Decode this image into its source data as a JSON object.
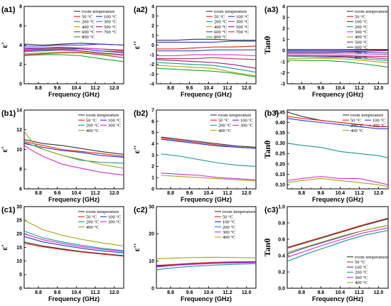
{
  "colors": {
    "room temperature": "#333333",
    "50 °C": "#e0261b",
    "100 °C": "#2b35d6",
    "200 °C": "#1a9a8a",
    "300 °C": "#d52dd5",
    "400 °C": "#a5a517",
    "500 °C": "#8a1f8a",
    "600 °C": "#3c4ab0",
    "700 °C": "#c03050",
    "800 °C": "#17a32a"
  },
  "chart_data": [
    {
      "id": "a1",
      "panel_label": "(a1)",
      "type": "line",
      "title": "",
      "xlabel": "Frequency (GHz)",
      "ylabel": "ε'",
      "xlim": [
        8.2,
        12.4
      ],
      "ylim": [
        0,
        8
      ],
      "xticks": [
        "8.8",
        "9.6",
        "10.4",
        "11.2",
        "12.0"
      ],
      "yticks": [
        "0",
        "2",
        "4",
        "6",
        "8"
      ],
      "legend_cols": 2,
      "legend_position": "top-right",
      "x": [
        8.2,
        9.0,
        9.8,
        10.6,
        11.4,
        12.4
      ],
      "series": [
        {
          "name": "room temperature",
          "values": [
            4.1,
            4.0,
            4.1,
            4.2,
            4.1,
            4.0
          ]
        },
        {
          "name": "50 °C",
          "values": [
            3.5,
            3.6,
            3.6,
            3.7,
            3.6,
            3.4
          ]
        },
        {
          "name": "100 °C",
          "values": [
            3.9,
            3.9,
            4.0,
            4.0,
            4.1,
            4.0
          ]
        },
        {
          "name": "200 °C",
          "values": [
            3.3,
            3.4,
            3.5,
            3.6,
            3.4,
            3.3
          ]
        },
        {
          "name": "300 °C",
          "values": [
            3.6,
            3.7,
            3.8,
            3.7,
            3.6,
            3.5
          ]
        },
        {
          "name": "400 °C",
          "values": [
            3.1,
            3.2,
            3.3,
            3.3,
            3.1,
            2.9
          ]
        },
        {
          "name": "500 °C",
          "values": [
            3.4,
            3.5,
            3.5,
            3.4,
            3.2,
            3.0
          ]
        },
        {
          "name": "600 °C",
          "values": [
            3.7,
            3.7,
            3.7,
            3.6,
            3.4,
            3.2
          ]
        },
        {
          "name": "700 °C",
          "values": [
            3.0,
            3.1,
            3.2,
            3.2,
            3.0,
            2.7
          ]
        },
        {
          "name": "800 °C",
          "values": [
            2.9,
            3.0,
            3.0,
            2.9,
            2.6,
            2.3
          ]
        }
      ]
    },
    {
      "id": "a2",
      "panel_label": "(a2)",
      "type": "line",
      "title": "",
      "xlabel": "Frequency (GHz)",
      "ylabel": "ε''",
      "xlim": [
        8.2,
        12.4
      ],
      "ylim": [
        -4,
        4
      ],
      "xticks": [
        "8.8",
        "9.6",
        "10.4",
        "11.2",
        "12.0"
      ],
      "yticks": [
        "-4",
        "-3",
        "-2",
        "-1",
        "0",
        "1",
        "2",
        "3",
        "4"
      ],
      "legend_cols": 2,
      "legend_position": "top-right",
      "x": [
        8.2,
        9.0,
        9.8,
        10.6,
        11.4,
        12.4
      ],
      "series": [
        {
          "name": "room temperature",
          "values": [
            0.5,
            0.5,
            0.6,
            0.6,
            0.5,
            0.5
          ]
        },
        {
          "name": "50 °C",
          "values": [
            -0.4,
            -0.4,
            -0.3,
            -0.2,
            -0.2,
            -0.1
          ]
        },
        {
          "name": "100 °C",
          "values": [
            0.3,
            0.3,
            0.3,
            0.3,
            0.4,
            0.4
          ]
        },
        {
          "name": "200 °C",
          "values": [
            -1.8,
            -1.9,
            -2.0,
            -2.1,
            -2.4,
            -2.8
          ]
        },
        {
          "name": "300 °C",
          "values": [
            -1.1,
            -1.1,
            -1.0,
            -1.0,
            -1.0,
            -1.1
          ]
        },
        {
          "name": "400 °C",
          "values": [
            -2.1,
            -2.2,
            -2.3,
            -2.4,
            -2.8,
            -3.2
          ]
        },
        {
          "name": "500 °C",
          "values": [
            -1.5,
            -1.6,
            -1.7,
            -1.8,
            -2.0,
            -2.4
          ]
        },
        {
          "name": "600 °C",
          "values": [
            -0.6,
            -0.6,
            -0.6,
            -0.5,
            -0.5,
            -0.5
          ]
        },
        {
          "name": "700 °C",
          "values": [
            -1.4,
            -1.4,
            -1.4,
            -1.3,
            -1.4,
            -1.5
          ]
        },
        {
          "name": "800 °C",
          "values": [
            -2.4,
            -2.5,
            -2.6,
            -2.7,
            -2.9,
            -3.3
          ]
        }
      ]
    },
    {
      "id": "a3",
      "panel_label": "(a3)",
      "type": "line",
      "title": "",
      "xlabel": "Frequency (GHz)",
      "ylabel": "Tanθ",
      "xlim": [
        8.2,
        12.4
      ],
      "ylim": [
        -3,
        4
      ],
      "xticks": [
        "8.8",
        "9.6",
        "10.4",
        "11.2",
        "12.0"
      ],
      "yticks": [
        "-3",
        "-2",
        "-1",
        "0",
        "1",
        "2",
        "3",
        "4"
      ],
      "legend_cols": 1,
      "legend_position": "top-right",
      "x": [
        8.2,
        9.0,
        9.8,
        10.6,
        11.4,
        12.4
      ],
      "series": [
        {
          "name": "room temperature",
          "values": [
            0.1,
            0.1,
            0.1,
            0.1,
            0.1,
            0.1
          ]
        },
        {
          "name": "50 °C",
          "values": [
            -0.1,
            -0.1,
            -0.1,
            -0.1,
            -0.05,
            0.0
          ]
        },
        {
          "name": "100 °C",
          "values": [
            0.0,
            0.0,
            0.0,
            0.0,
            0.05,
            0.05
          ]
        },
        {
          "name": "200 °C",
          "values": [
            -0.5,
            -0.55,
            -0.6,
            -0.6,
            -0.75,
            -0.9
          ]
        },
        {
          "name": "300 °C",
          "values": [
            -0.3,
            -0.3,
            -0.3,
            -0.3,
            -0.3,
            -0.35
          ]
        },
        {
          "name": "400 °C",
          "values": [
            -0.7,
            -0.7,
            -0.7,
            -0.75,
            -0.9,
            -1.1
          ]
        },
        {
          "name": "500 °C",
          "values": [
            -0.45,
            -0.45,
            -0.5,
            -0.55,
            -0.6,
            -0.75
          ]
        },
        {
          "name": "600 °C",
          "values": [
            -0.2,
            -0.2,
            -0.2,
            -0.15,
            -0.15,
            -0.2
          ]
        },
        {
          "name": "700 °C",
          "values": [
            -0.45,
            -0.45,
            -0.45,
            -0.45,
            -0.5,
            -0.55
          ]
        },
        {
          "name": "800 °C",
          "values": [
            -0.85,
            -0.9,
            -0.9,
            -1.0,
            -1.2,
            -1.5
          ]
        }
      ]
    },
    {
      "id": "b1",
      "panel_label": "(b1)",
      "type": "line",
      "title": "",
      "xlabel": "Frequency (GHz)",
      "ylabel": "ε'",
      "xlim": [
        8.2,
        12.4
      ],
      "ylim": [
        6,
        14
      ],
      "xticks": [
        "8.8",
        "9.6",
        "10.4",
        "11.2",
        "12.0"
      ],
      "yticks": [
        "6",
        "8",
        "10",
        "12",
        "14"
      ],
      "legend_cols": 2,
      "legend_position": "top-right",
      "x": [
        8.2,
        8.6,
        9.0,
        9.8,
        10.6,
        11.4,
        12.4
      ],
      "series": [
        {
          "name": "room temperature",
          "values": [
            11.0,
            10.8,
            10.6,
            10.4,
            10.1,
            9.8,
            9.5
          ]
        },
        {
          "name": "50 °C",
          "values": [
            10.8,
            10.6,
            10.4,
            10.0,
            9.8,
            9.6,
            9.3
          ]
        },
        {
          "name": "100 °C",
          "values": [
            10.6,
            10.4,
            10.2,
            9.9,
            9.7,
            9.4,
            9.2
          ]
        },
        {
          "name": "200 °C",
          "values": [
            10.7,
            10.4,
            10.0,
            9.4,
            8.9,
            8.7,
            8.6
          ]
        },
        {
          "name": "300 °C",
          "values": [
            10.4,
            9.8,
            9.3,
            8.5,
            8.1,
            7.7,
            7.4
          ]
        },
        {
          "name": "400 °C",
          "values": [
            11.8,
            10.6,
            10.0,
            9.4,
            9.0,
            8.5,
            8.1
          ]
        }
      ]
    },
    {
      "id": "b2",
      "panel_label": "(b2)",
      "type": "line",
      "title": "",
      "xlabel": "Frequency (GHz)",
      "ylabel": "ε''",
      "xlim": [
        8.2,
        12.4
      ],
      "ylim": [
        0,
        7
      ],
      "xticks": [
        "8.8",
        "9.6",
        "10.4",
        "11.2",
        "12.0"
      ],
      "yticks": [
        "0",
        "1",
        "2",
        "3",
        "4",
        "5",
        "6",
        "7"
      ],
      "legend_cols": 2,
      "legend_position": "top-right",
      "x": [
        8.4,
        9.2,
        10.0,
        10.8,
        11.6,
        12.4
      ],
      "series": [
        {
          "name": "room temperature",
          "values": [
            4.6,
            4.4,
            4.2,
            4.0,
            3.8,
            3.7
          ]
        },
        {
          "name": "50 °C",
          "values": [
            4.5,
            4.3,
            4.1,
            3.9,
            3.7,
            3.6
          ]
        },
        {
          "name": "100 °C",
          "values": [
            4.4,
            4.2,
            4.0,
            3.8,
            3.7,
            3.6
          ]
        },
        {
          "name": "200 °C",
          "values": [
            3.1,
            2.9,
            2.6,
            2.3,
            2.1,
            2.0
          ]
        },
        {
          "name": "300 °C",
          "values": [
            1.4,
            1.3,
            1.2,
            1.0,
            0.9,
            0.8
          ]
        },
        {
          "name": "400 °C",
          "values": [
            1.2,
            1.1,
            1.0,
            0.9,
            0.8,
            0.7
          ]
        }
      ]
    },
    {
      "id": "b3",
      "panel_label": "(b3)",
      "type": "line",
      "title": "",
      "xlabel": "Frequency (GHz)",
      "ylabel": "Tanθ",
      "xlim": [
        8.2,
        12.4
      ],
      "ylim": [
        0.08,
        0.46
      ],
      "xticks": [
        "8.8",
        "9.6",
        "10.4",
        "11.2",
        "12.0"
      ],
      "yticks": [
        "0.10",
        "0.15",
        "0.20",
        "0.25",
        "0.30",
        "0.35",
        "0.40",
        "0.45"
      ],
      "legend_cols": 2,
      "legend_position": "top-right",
      "x": [
        8.2,
        8.8,
        9.6,
        10.4,
        11.2,
        12.0,
        12.4
      ],
      "series": [
        {
          "name": "room temperature",
          "values": [
            0.45,
            0.43,
            0.41,
            0.4,
            0.39,
            0.38,
            0.38
          ]
        },
        {
          "name": "50 °C",
          "values": [
            0.43,
            0.42,
            0.41,
            0.4,
            0.39,
            0.38,
            0.38
          ]
        },
        {
          "name": "100 °C",
          "values": [
            0.42,
            0.41,
            0.4,
            0.39,
            0.38,
            0.37,
            0.37
          ]
        },
        {
          "name": "200 °C",
          "values": [
            0.3,
            0.29,
            0.28,
            0.26,
            0.25,
            0.24,
            0.23
          ]
        },
        {
          "name": "300 °C",
          "values": [
            0.12,
            0.13,
            0.14,
            0.13,
            0.13,
            0.11,
            0.1
          ]
        },
        {
          "name": "400 °C",
          "values": [
            0.11,
            0.12,
            0.13,
            0.12,
            0.11,
            0.1,
            0.09
          ]
        }
      ]
    },
    {
      "id": "c1",
      "panel_label": "(c1)",
      "type": "line",
      "title": "",
      "xlabel": "Frequency (GHz)",
      "ylabel": "ε'",
      "xlim": [
        8.2,
        12.4
      ],
      "ylim": [
        0,
        30
      ],
      "xticks": [
        "8.8",
        "9.6",
        "10.4",
        "11.2",
        "12.0"
      ],
      "yticks": [
        "0",
        "5",
        "10",
        "15",
        "20",
        "25",
        "30"
      ],
      "legend_cols": 2,
      "legend_position": "top-right",
      "x": [
        8.2,
        9.0,
        9.8,
        10.6,
        11.4,
        12.4
      ],
      "series": [
        {
          "name": "room temperature",
          "values": [
            17.0,
            15.5,
            14.5,
            13.5,
            12.8,
            12.0
          ]
        },
        {
          "name": "50 °C",
          "values": [
            16.5,
            15.2,
            14.2,
            13.3,
            12.6,
            11.8
          ]
        },
        {
          "name": "100 °C",
          "values": [
            19.0,
            17.0,
            15.8,
            14.7,
            13.8,
            13.0
          ]
        },
        {
          "name": "200 °C",
          "values": [
            21.0,
            18.5,
            17.0,
            15.8,
            14.8,
            13.8
          ]
        },
        {
          "name": "300 °C",
          "values": [
            20.0,
            17.8,
            16.5,
            15.3,
            14.4,
            13.5
          ]
        },
        {
          "name": "400 °C",
          "values": [
            25.0,
            21.5,
            19.5,
            18.0,
            16.8,
            15.5
          ]
        }
      ]
    },
    {
      "id": "c2",
      "panel_label": "(c2)",
      "type": "line",
      "title": "",
      "xlabel": "Frequency (GHz)",
      "ylabel": "ε''",
      "xlim": [
        8.2,
        12.4
      ],
      "ylim": [
        0,
        30
      ],
      "xticks": [
        "8.8",
        "9.6",
        "10.4",
        "11.2",
        "12.0"
      ],
      "yticks": [
        "0",
        "10",
        "20",
        "30"
      ],
      "legend_cols": 1,
      "legend_position": "top-right",
      "x": [
        8.2,
        9.0,
        9.8,
        10.6,
        11.4,
        12.4
      ],
      "series": [
        {
          "name": "room temperature",
          "values": [
            8.2,
            8.7,
            9.1,
            9.4,
            9.6,
            9.7
          ]
        },
        {
          "name": "50 °C",
          "values": [
            8.4,
            8.8,
            9.2,
            9.5,
            9.7,
            9.8
          ]
        },
        {
          "name": "100 °C",
          "values": [
            8.0,
            8.5,
            8.9,
            9.2,
            9.4,
            9.5
          ]
        },
        {
          "name": "200 °C",
          "values": [
            6.8,
            7.6,
            8.1,
            8.5,
            8.8,
            9.0
          ]
        },
        {
          "name": "300 °C",
          "values": [
            7.8,
            8.4,
            8.8,
            9.1,
            9.3,
            9.4
          ]
        },
        {
          "name": "400 °C",
          "values": [
            10.8,
            11.1,
            11.3,
            11.4,
            11.3,
            11.2
          ]
        }
      ]
    },
    {
      "id": "c3",
      "panel_label": "(c3)",
      "type": "line",
      "title": "",
      "xlabel": "Frequency (GHz)",
      "ylabel": "Tanθ",
      "xlim": [
        8.2,
        12.4
      ],
      "ylim": [
        0.0,
        1.0
      ],
      "xticks": [
        "8.8",
        "9.6",
        "10.4",
        "11.2",
        "12.0"
      ],
      "yticks": [
        "0.0",
        "0.2",
        "0.4",
        "0.6",
        "0.8",
        "1.0"
      ],
      "legend_cols": 1,
      "legend_position": "bottom-right",
      "x": [
        8.2,
        9.0,
        9.8,
        10.6,
        11.4,
        12.4
      ],
      "series": [
        {
          "name": "room temperature",
          "values": [
            0.49,
            0.56,
            0.63,
            0.7,
            0.77,
            0.85
          ]
        },
        {
          "name": "50 °C",
          "values": [
            0.5,
            0.57,
            0.64,
            0.71,
            0.78,
            0.86
          ]
        },
        {
          "name": "100 °C",
          "values": [
            0.42,
            0.5,
            0.57,
            0.64,
            0.71,
            0.77
          ]
        },
        {
          "name": "200 °C",
          "values": [
            0.33,
            0.42,
            0.5,
            0.58,
            0.65,
            0.71
          ]
        },
        {
          "name": "300 °C",
          "values": [
            0.38,
            0.46,
            0.54,
            0.61,
            0.68,
            0.74
          ]
        },
        {
          "name": "400 °C",
          "values": [
            0.44,
            0.51,
            0.58,
            0.65,
            0.71,
            0.77
          ]
        }
      ]
    }
  ]
}
